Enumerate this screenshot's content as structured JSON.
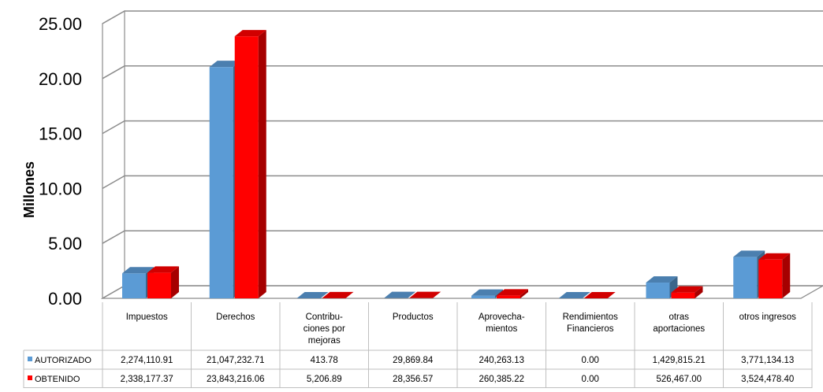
{
  "chart_data": {
    "type": "bar",
    "ylabel": "Millones",
    "ylim": [
      0,
      25
    ],
    "yticks": [
      "0.00",
      "5.00",
      "10.00",
      "15.00",
      "20.00",
      "25.00"
    ],
    "grid": true,
    "categories": [
      [
        "Impuestos"
      ],
      [
        "Derechos"
      ],
      [
        "Contribu-",
        "ciones por",
        "mejoras"
      ],
      [
        "Productos"
      ],
      [
        "Aprovecha-",
        "mientos"
      ],
      [
        "Rendimientos",
        "Financieros"
      ],
      [
        "otras",
        "aportaciones"
      ],
      [
        "otros ingresos"
      ]
    ],
    "series": [
      {
        "name": "AUTORIZADO",
        "color": "#5B9BD5",
        "values": [
          2.27411091,
          21.04723271,
          0.00041378,
          0.02986984,
          0.24026313,
          0.0,
          1.42981521,
          3.77113413
        ],
        "labels": [
          "2,274,110.91",
          "21,047,232.71",
          "413.78",
          "29,869.84",
          "240,263.13",
          "0.00",
          "1,429,815.21",
          "3,771,134.13"
        ]
      },
      {
        "name": "OBTENIDO",
        "color": "#FF0000",
        "values": [
          2.33817737,
          23.84321606,
          0.00520689,
          0.02835657,
          0.26038522,
          0.0,
          0.526467,
          3.5244784
        ],
        "labels": [
          "2,338,177.37",
          "23,843,216.06",
          "5,206.89",
          "28,356.57",
          "260,385.22",
          "0.00",
          "526,467.00",
          "3,524,478.40"
        ]
      }
    ]
  }
}
